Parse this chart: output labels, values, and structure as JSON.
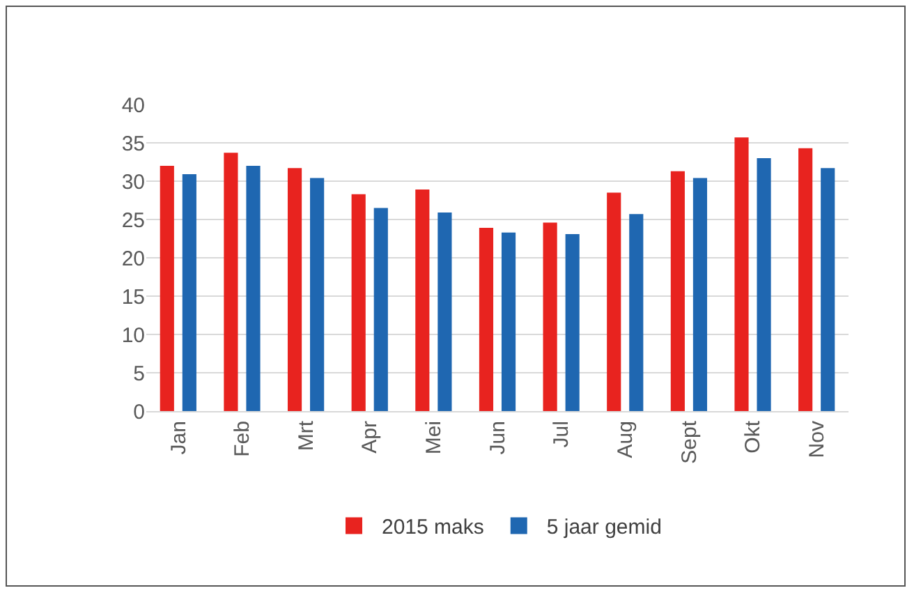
{
  "chart_data": {
    "type": "bar",
    "categories": [
      "Jan",
      "Feb",
      "Mrt",
      "Apr",
      "Mei",
      "Jun",
      "Jul",
      "Aug",
      "Sept",
      "Okt",
      "Nov"
    ],
    "series": [
      {
        "name": "2015 maks",
        "color": "#e8231f",
        "values": [
          32,
          33.7,
          31.7,
          28.3,
          28.9,
          23.9,
          24.6,
          28.5,
          31.3,
          35.7,
          34.3
        ]
      },
      {
        "name": "5 jaar gemid",
        "color": "#1f67b1",
        "values": [
          30.9,
          32,
          30.4,
          26.5,
          25.9,
          23.3,
          23.1,
          25.7,
          30.4,
          33,
          31.7
        ]
      }
    ],
    "ylim": [
      0,
      40
    ],
    "yticks": [
      0,
      5,
      10,
      15,
      20,
      25,
      30,
      35,
      40
    ],
    "grid": "y",
    "legend": "bottom"
  }
}
